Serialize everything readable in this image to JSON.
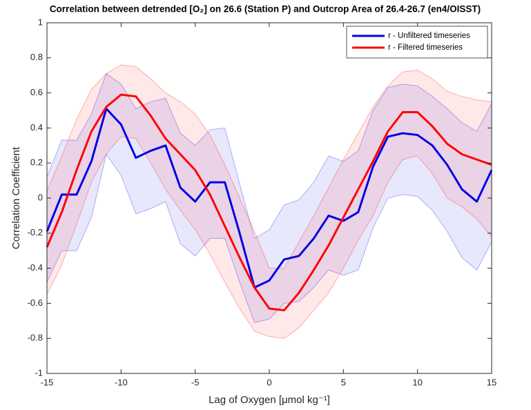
{
  "chart_data": {
    "type": "line",
    "title": "Correlation between detrended [O₂] on 26.6 (Station P) and Outcrop Area of 26.4-26.7 (en4/OISST)",
    "x_label": "Lag of Oxygen [μmol kg⁻¹]",
    "y_label": "Correlation Coefficient",
    "x": [
      -15,
      -14,
      -13,
      -12,
      -11,
      -10,
      -9,
      -8,
      -7,
      -6,
      -5,
      -4,
      -3,
      -2,
      -1,
      0,
      1,
      2,
      3,
      4,
      5,
      6,
      7,
      8,
      9,
      10,
      11,
      12,
      13,
      14,
      15
    ],
    "series": [
      {
        "name": "r - Unfiltered timeseries",
        "color": "#0000e6",
        "values": [
          -0.19,
          0.02,
          0.02,
          0.21,
          0.51,
          0.42,
          0.23,
          0.27,
          0.3,
          0.06,
          -0.02,
          0.09,
          0.09,
          -0.2,
          -0.51,
          -0.47,
          -0.35,
          -0.33,
          -0.23,
          -0.1,
          -0.13,
          -0.08,
          0.18,
          0.35,
          0.37,
          0.36,
          0.3,
          0.19,
          0.05,
          -0.02,
          0.16
        ],
        "upper": [
          0.12,
          0.33,
          0.33,
          0.48,
          0.71,
          0.65,
          0.51,
          0.55,
          0.57,
          0.37,
          0.3,
          0.39,
          0.4,
          0.08,
          -0.23,
          -0.18,
          -0.04,
          -0.01,
          0.09,
          0.24,
          0.21,
          0.27,
          0.5,
          0.63,
          0.65,
          0.64,
          0.58,
          0.51,
          0.43,
          0.38,
          0.54
        ],
        "lower": [
          -0.48,
          -0.3,
          -0.3,
          -0.11,
          0.25,
          0.13,
          -0.09,
          -0.06,
          -0.02,
          -0.26,
          -0.33,
          -0.23,
          -0.23,
          -0.48,
          -0.71,
          -0.69,
          -0.6,
          -0.59,
          -0.51,
          -0.41,
          -0.44,
          -0.41,
          -0.17,
          0.0,
          0.02,
          0.01,
          -0.07,
          -0.19,
          -0.34,
          -0.41,
          -0.25
        ]
      },
      {
        "name": "r - Filtered timeseries",
        "color": "#ff0000",
        "values": [
          -0.28,
          -0.08,
          0.16,
          0.38,
          0.52,
          0.59,
          0.58,
          0.47,
          0.34,
          0.25,
          0.16,
          0.02,
          -0.16,
          -0.34,
          -0.51,
          -0.63,
          -0.64,
          -0.54,
          -0.41,
          -0.27,
          -0.11,
          0.05,
          0.21,
          0.38,
          0.49,
          0.49,
          0.41,
          0.31,
          0.25,
          0.22,
          0.19
        ],
        "upper": [
          0.04,
          0.24,
          0.45,
          0.62,
          0.71,
          0.76,
          0.75,
          0.68,
          0.6,
          0.55,
          0.48,
          0.36,
          0.19,
          0.0,
          -0.19,
          -0.4,
          -0.4,
          -0.25,
          -0.1,
          0.06,
          0.22,
          0.37,
          0.52,
          0.64,
          0.72,
          0.73,
          0.68,
          0.61,
          0.58,
          0.56,
          0.55
        ],
        "lower": [
          -0.55,
          -0.38,
          -0.15,
          0.09,
          0.25,
          0.35,
          0.34,
          0.2,
          0.05,
          -0.07,
          -0.18,
          -0.32,
          -0.48,
          -0.63,
          -0.76,
          -0.79,
          -0.8,
          -0.74,
          -0.64,
          -0.54,
          -0.4,
          -0.24,
          -0.1,
          0.09,
          0.22,
          0.24,
          0.14,
          0.0,
          -0.05,
          -0.12,
          -0.22
        ]
      }
    ],
    "xlim": [
      -15,
      15
    ],
    "xticks": [
      -15,
      -10,
      -5,
      0,
      5,
      10,
      15
    ],
    "ylim": [
      -1,
      1
    ],
    "yticks": [
      -1,
      -0.8,
      -0.6,
      -0.4,
      -0.2,
      0,
      0.2,
      0.4,
      0.6,
      0.8,
      1
    ],
    "grid": false,
    "legend": "northeast"
  }
}
